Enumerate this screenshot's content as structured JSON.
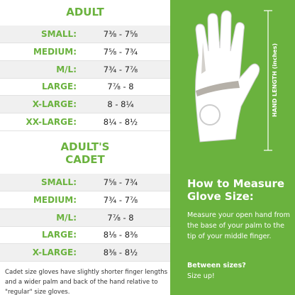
{
  "adult": {
    "title": "ADULT",
    "rows": [
      [
        "SMALL:",
        "7⅜ - 7⅝"
      ],
      [
        "MEDIUM:",
        "7⅝ - 7¾"
      ],
      [
        "M/L:",
        "7¾ - 7⅞"
      ],
      [
        "LARGE:",
        "7⅞ - 8"
      ],
      [
        "X-LARGE:",
        "8 - 8¼"
      ],
      [
        "XX-LARGE:",
        "8¼ - 8½"
      ]
    ]
  },
  "cadet": {
    "title": [
      "ADULT'S",
      "CADET"
    ],
    "rows": [
      [
        "SMALL:",
        "7⅝ - 7¾"
      ],
      [
        "MEDIUM:",
        "7¾ - 7⅞"
      ],
      [
        "M/L:",
        "7⅞ - 8"
      ],
      [
        "LARGE:",
        "8⅛ - 8⅜"
      ],
      [
        "X-LARGE:",
        "8⅜ - 8½"
      ]
    ]
  },
  "note": "Cadet size gloves have slightly shorter finger lengths and a wider palm and back of the hand relative to \"regular\" size gloves.",
  "measure": {
    "axis_label": "HAND LENGTH (inches)",
    "heading": [
      "How to Measure",
      "Glove Size:"
    ],
    "body": "Measure your open hand from the base of your palm to the tip of your middle finger.",
    "tip_question": "Between sizes?",
    "tip_answer": "Size up!"
  }
}
